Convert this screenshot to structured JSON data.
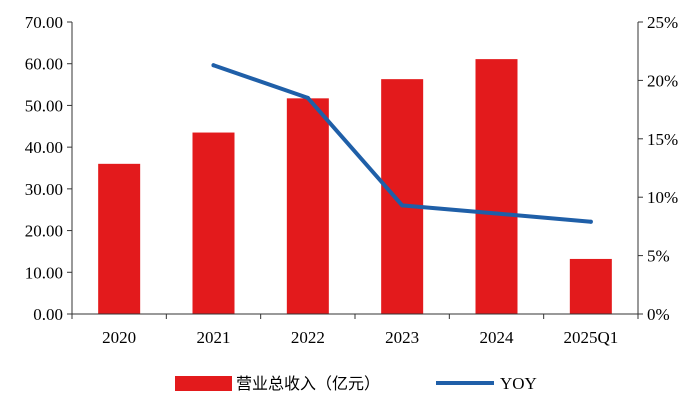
{
  "chart_data": {
    "type": "bar",
    "categories": [
      "2020",
      "2021",
      "2022",
      "2023",
      "2024",
      "2025Q1"
    ],
    "series": [
      {
        "name": "营业总收入（亿元）",
        "type": "bar",
        "axis": "left",
        "color": "#e31a1c",
        "values": [
          36.0,
          43.5,
          51.7,
          56.3,
          61.1,
          13.2
        ]
      },
      {
        "name": "YOY",
        "type": "line",
        "axis": "right",
        "color": "#1f5fa8",
        "values": [
          null,
          21.3,
          18.5,
          9.3,
          8.6,
          7.9
        ]
      }
    ],
    "y_left": {
      "min": 0,
      "max": 70,
      "ticks": [
        "0.00",
        "10.00",
        "20.00",
        "30.00",
        "40.00",
        "50.00",
        "60.00",
        "70.00"
      ]
    },
    "y_right": {
      "min": 0,
      "max": 25,
      "ticks": [
        "0%",
        "5%",
        "10%",
        "15%",
        "20%",
        "25%"
      ]
    },
    "legend": {
      "placement": "bottom"
    },
    "grid": false
  }
}
